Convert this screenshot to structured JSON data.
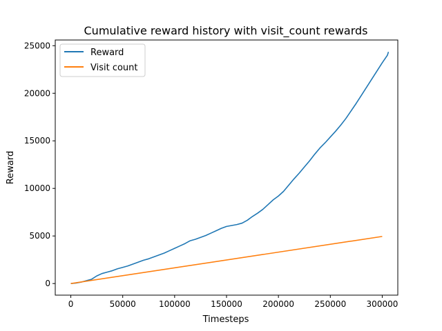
{
  "chart_data": {
    "type": "line",
    "title": "Cumulative reward history with visit_count rewards",
    "xlabel": "Timesteps",
    "ylabel": "Reward",
    "xlim": [
      -15000,
      315000
    ],
    "ylim": [
      -1220,
      25600
    ],
    "x_ticks": [
      0,
      50000,
      100000,
      150000,
      200000,
      250000,
      300000
    ],
    "y_ticks": [
      0,
      5000,
      10000,
      15000,
      20000,
      25000
    ],
    "grid": false,
    "legend_position": "top-left",
    "series": [
      {
        "name": "Reward",
        "color": "#1f77b4",
        "points": [
          [
            0,
            0
          ],
          [
            5000,
            50
          ],
          [
            10000,
            150
          ],
          [
            15000,
            300
          ],
          [
            20000,
            450
          ],
          [
            25000,
            800
          ],
          [
            30000,
            1050
          ],
          [
            35000,
            1200
          ],
          [
            40000,
            1350
          ],
          [
            45000,
            1550
          ],
          [
            50000,
            1700
          ],
          [
            55000,
            1850
          ],
          [
            60000,
            2050
          ],
          [
            65000,
            2250
          ],
          [
            70000,
            2450
          ],
          [
            75000,
            2600
          ],
          [
            80000,
            2800
          ],
          [
            85000,
            3000
          ],
          [
            90000,
            3200
          ],
          [
            95000,
            3450
          ],
          [
            100000,
            3700
          ],
          [
            105000,
            3950
          ],
          [
            110000,
            4200
          ],
          [
            115000,
            4500
          ],
          [
            120000,
            4650
          ],
          [
            125000,
            4850
          ],
          [
            130000,
            5050
          ],
          [
            135000,
            5300
          ],
          [
            140000,
            5550
          ],
          [
            145000,
            5800
          ],
          [
            150000,
            6000
          ],
          [
            155000,
            6100
          ],
          [
            160000,
            6200
          ],
          [
            165000,
            6350
          ],
          [
            170000,
            6650
          ],
          [
            175000,
            7050
          ],
          [
            180000,
            7400
          ],
          [
            185000,
            7800
          ],
          [
            190000,
            8300
          ],
          [
            195000,
            8800
          ],
          [
            200000,
            9200
          ],
          [
            205000,
            9700
          ],
          [
            210000,
            10350
          ],
          [
            215000,
            11000
          ],
          [
            220000,
            11600
          ],
          [
            225000,
            12250
          ],
          [
            230000,
            12900
          ],
          [
            235000,
            13600
          ],
          [
            240000,
            14250
          ],
          [
            245000,
            14800
          ],
          [
            250000,
            15400
          ],
          [
            255000,
            16000
          ],
          [
            260000,
            16650
          ],
          [
            265000,
            17350
          ],
          [
            270000,
            18150
          ],
          [
            275000,
            18950
          ],
          [
            280000,
            19800
          ],
          [
            285000,
            20650
          ],
          [
            290000,
            21500
          ],
          [
            295000,
            22350
          ],
          [
            300000,
            23200
          ],
          [
            305000,
            24000
          ],
          [
            306000,
            24350
          ]
        ]
      },
      {
        "name": "Visit count",
        "color": "#ff7f0e",
        "points": [
          [
            0,
            0
          ],
          [
            300000,
            4950
          ]
        ]
      }
    ]
  }
}
